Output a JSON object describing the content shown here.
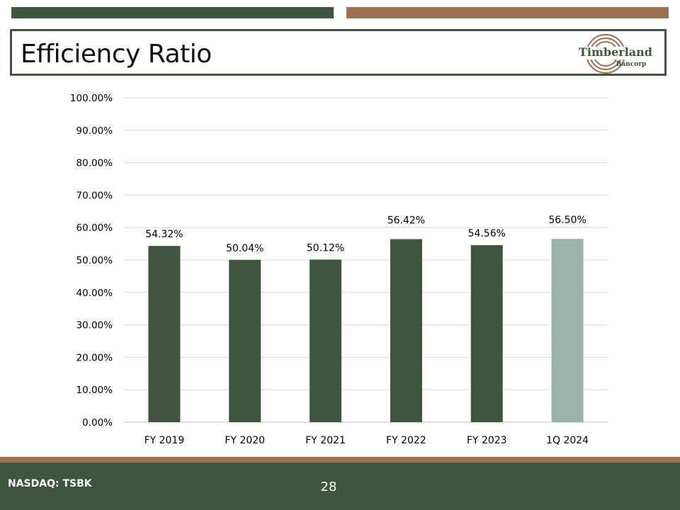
{
  "slide": {
    "title": "Efficiency Ratio",
    "footer_ticker": "NASDAQ: TSBK",
    "page_number": "28"
  },
  "logo": {
    "name": "Timberland",
    "sub": "Bancorp"
  },
  "colors": {
    "dark_green": "#3f553d",
    "brown": "#9e7050",
    "bar": "#3f553d",
    "bar_highlight": "#9ab3ab"
  },
  "chart_data": {
    "type": "bar",
    "title": "",
    "xlabel": "",
    "ylabel": "",
    "categories": [
      "FY 2019",
      "FY 2020",
      "FY 2021",
      "FY 2022",
      "FY 2023",
      "1Q 2024"
    ],
    "values": [
      54.32,
      50.04,
      50.12,
      56.42,
      54.56,
      56.5
    ],
    "data_labels": [
      "54.32%",
      "50.04%",
      "50.12%",
      "56.42%",
      "54.56%",
      "56.50%"
    ],
    "highlight_category": "1Q 2024",
    "ylim": [
      0,
      100
    ],
    "y_ticks": [
      0,
      10,
      20,
      30,
      40,
      50,
      60,
      70,
      80,
      90,
      100
    ],
    "y_tick_labels": [
      "0.00%",
      "10.00%",
      "20.00%",
      "30.00%",
      "40.00%",
      "50.00%",
      "60.00%",
      "70.00%",
      "80.00%",
      "90.00%",
      "100.00%"
    ],
    "grid": true,
    "legend": "none"
  }
}
